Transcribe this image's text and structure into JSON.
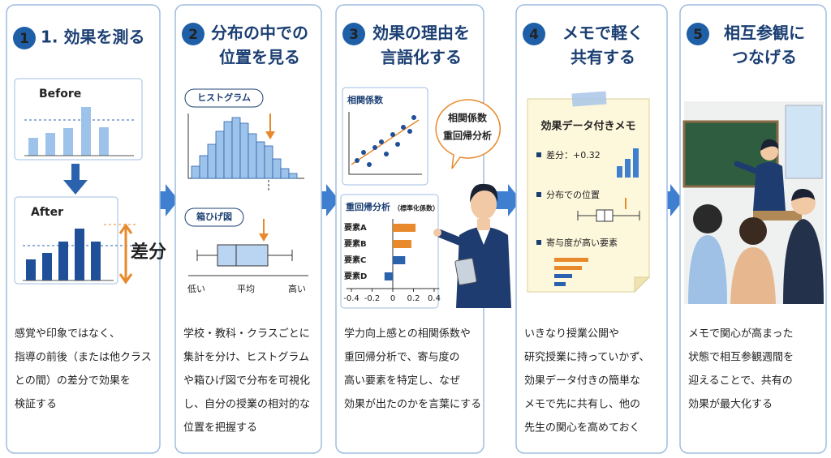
{
  "panels": [
    {
      "number": 1,
      "title": [
        "1. 効果を測る"
      ],
      "before": "Before",
      "after": "After",
      "difference": "差分",
      "body": [
        "感覚や印象ではなく、",
        "指導の前後（または他クラス",
        "との間）の差分で効果を",
        "検証する"
      ]
    },
    {
      "number": 2,
      "title": [
        "分布の中での",
        "位置を見る"
      ],
      "histogram": "ヒストグラム",
      "boxplot": "箱ひげ図",
      "axis_labels": [
        "低い",
        "平均",
        "高い"
      ],
      "body": [
        "学校・教科・クラスごとに",
        "集計を分け、ヒストグラム",
        "や箱ひげ図で分布を可視化",
        "し、自分の授業の相対的な",
        "位置を把握する"
      ]
    },
    {
      "number": 3,
      "title": [
        "効果の理由を",
        "言語化する"
      ],
      "correlation": "相関係数",
      "bubble": [
        "相関係数",
        "重回帰分析"
      ],
      "regression": {
        "title": "重回帰分析",
        "subtitle": "（標準化係数）",
        "factors": [
          "要素A",
          "要素B",
          "要素C",
          "要素D"
        ],
        "values": [
          0.22,
          0.18,
          0.12,
          -0.08
        ],
        "colors": [
          "#e8892b",
          "#e8892b",
          "#2a62ad",
          "#2a62ad"
        ],
        "xlim": [
          -0.45,
          0.45
        ],
        "xticks": [
          -0.4,
          -0.2,
          0,
          0.2,
          0.4
        ]
      },
      "body": [
        "学力向上感との相関係数や",
        "重回帰分析で、寄与度の",
        "高い要素を特定し、なぜ",
        "効果が出たのかを言葉にする"
      ]
    },
    {
      "number": 4,
      "title": [
        "メモで軽く",
        "共有する"
      ],
      "memo": {
        "title": "効果データ付きメモ",
        "items": [
          "差分：+0.32",
          "分布での位置",
          "寄与度が高い要素"
        ]
      },
      "body": [
        "いきなり授業公開や",
        "研究授業に持っていかず、",
        "効果データ付きの簡単な",
        "メモで先に共有し、他の",
        "先生の関心を高めておく"
      ]
    },
    {
      "number": 5,
      "title": [
        "相互参観に",
        "つなげる"
      ],
      "body": [
        "メモで関心が高まった",
        "状態で相互参観週間を",
        "迎えることで、共有の",
        "効果が最大化する"
      ]
    }
  ]
}
